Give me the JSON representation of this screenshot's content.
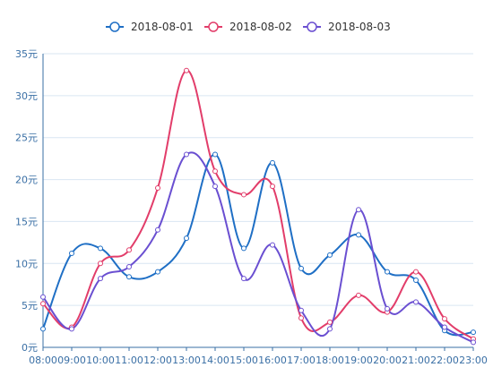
{
  "chart_data": {
    "type": "line",
    "title": "",
    "xlabel": "",
    "ylabel": "",
    "x": [
      "08:00",
      "09:00",
      "10:00",
      "11:00",
      "12:00",
      "13:00",
      "14:00",
      "15:00",
      "16:00",
      "17:00",
      "18:00",
      "19:00",
      "20:00",
      "21:00",
      "22:00",
      "23:00"
    ],
    "y_ticks": [
      "0元",
      "5元",
      "10元",
      "15元",
      "20元",
      "25元",
      "30元",
      "35元"
    ],
    "ylim": [
      0,
      35
    ],
    "grid": true,
    "legend_position": "top-center",
    "smooth": true,
    "series": [
      {
        "name": "2018-08-01",
        "color": "#1f6fc5",
        "values": [
          2.2,
          11.2,
          11.8,
          8.4,
          9.0,
          13.0,
          23.0,
          11.8,
          22.0,
          9.4,
          11.0,
          13.4,
          9.0,
          8.0,
          2.0,
          1.8
        ]
      },
      {
        "name": "2018-08-02",
        "color": "#e23d6a",
        "values": [
          5.2,
          2.4,
          10.0,
          11.6,
          19.0,
          33.0,
          21.0,
          18.2,
          19.2,
          3.5,
          3.0,
          6.2,
          4.2,
          9.0,
          3.4,
          1.0
        ]
      },
      {
        "name": "2018-08-03",
        "color": "#6a4fd1",
        "values": [
          6.0,
          2.2,
          8.2,
          9.6,
          14.0,
          23.0,
          19.2,
          8.2,
          12.2,
          4.4,
          2.2,
          16.4,
          4.6,
          5.4,
          2.4,
          0.6
        ]
      }
    ]
  }
}
